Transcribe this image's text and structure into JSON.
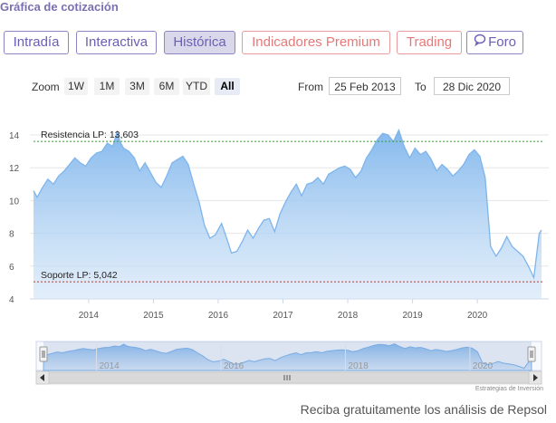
{
  "header": {
    "title": "Gráfica de cotización"
  },
  "tabs": [
    {
      "label": "Intradía"
    },
    {
      "label": "Interactiva"
    },
    {
      "label": "Histórica"
    },
    {
      "label": "Indicadores Premium"
    },
    {
      "label": "Trading"
    },
    {
      "label": "Foro"
    }
  ],
  "zoom": {
    "label": "Zoom",
    "buttons": [
      "1W",
      "1M",
      "3M",
      "6M",
      "YTD",
      "All"
    ],
    "selected": "All"
  },
  "range": {
    "from_label": "From",
    "from_value": "25 Feb 2013",
    "to_label": "To",
    "to_value": "28 Dic 2020"
  },
  "footer": {
    "text": "Reciba gratuitamente los análisis de Repsol",
    "credit": "Estrategias de Inversión"
  },
  "colors": {
    "accent": "#6b5fb5",
    "series": "#7eb5ec",
    "resistance": "#2fa12f",
    "support": "#c0392b"
  },
  "chart_data": {
    "type": "area",
    "title": "",
    "xlabel": "",
    "ylabel": "",
    "ylim": [
      4,
      14
    ],
    "yticks": [
      "4",
      "6",
      "8",
      "10",
      "12",
      "14"
    ],
    "xticks": [
      "2014",
      "2015",
      "2016",
      "2017",
      "2018",
      "2019",
      "2020"
    ],
    "grid": true,
    "x": [
      "2013-02-25",
      "2013-03-15",
      "2013-04-15",
      "2013-05-15",
      "2013-06-15",
      "2013-07-15",
      "2013-08-15",
      "2013-09-15",
      "2013-10-15",
      "2013-11-15",
      "2013-12-15",
      "2014-01-15",
      "2014-02-15",
      "2014-03-15",
      "2014-04-15",
      "2014-05-15",
      "2014-06-10",
      "2014-06-25",
      "2014-07-15",
      "2014-08-15",
      "2014-09-15",
      "2014-10-15",
      "2014-11-15",
      "2014-12-15",
      "2015-01-15",
      "2015-02-15",
      "2015-03-15",
      "2015-04-15",
      "2015-05-15",
      "2015-06-15",
      "2015-07-15",
      "2015-08-15",
      "2015-09-15",
      "2015-10-15",
      "2015-11-15",
      "2015-12-15",
      "2016-01-20",
      "2016-02-15",
      "2016-03-15",
      "2016-04-15",
      "2016-05-15",
      "2016-06-15",
      "2016-07-15",
      "2016-08-15",
      "2016-09-15",
      "2016-10-15",
      "2016-11-15",
      "2016-12-15",
      "2017-01-15",
      "2017-02-15",
      "2017-03-15",
      "2017-04-15",
      "2017-05-15",
      "2017-06-15",
      "2017-07-15",
      "2017-08-15",
      "2017-09-15",
      "2017-10-15",
      "2017-11-15",
      "2017-12-15",
      "2018-01-15",
      "2018-02-15",
      "2018-03-15",
      "2018-04-15",
      "2018-05-15",
      "2018-06-15",
      "2018-07-15",
      "2018-08-15",
      "2018-09-15",
      "2018-10-15",
      "2018-11-15",
      "2018-12-15",
      "2019-01-15",
      "2019-02-15",
      "2019-03-15",
      "2019-04-15",
      "2019-05-15",
      "2019-06-15",
      "2019-07-15",
      "2019-08-15",
      "2019-09-15",
      "2019-10-15",
      "2019-11-15",
      "2019-12-15",
      "2020-01-15",
      "2020-02-15",
      "2020-03-15",
      "2020-04-15",
      "2020-05-15",
      "2020-06-15",
      "2020-07-15",
      "2020-08-15",
      "2020-09-15",
      "2020-10-15",
      "2020-11-15",
      "2020-12-15",
      "2020-12-28"
    ],
    "series": [
      {
        "values": [
          10.6,
          10.2,
          10.8,
          11.3,
          11.0,
          11.5,
          11.8,
          12.2,
          12.6,
          12.3,
          12.1,
          12.6,
          12.9,
          13.0,
          13.5,
          13.3,
          14.2,
          13.6,
          13.2,
          13.0,
          12.6,
          11.8,
          12.3,
          11.7,
          11.1,
          10.8,
          11.5,
          12.3,
          12.5,
          12.7,
          12.2,
          11.0,
          9.9,
          8.5,
          7.7,
          7.9,
          8.6,
          7.8,
          6.8,
          6.9,
          7.5,
          8.2,
          7.7,
          8.3,
          8.8,
          8.9,
          8.1,
          9.2,
          9.9,
          10.5,
          11.0,
          10.3,
          11.0,
          11.1,
          11.4,
          11.0,
          11.6,
          11.8,
          12.0,
          12.1,
          11.9,
          11.4,
          11.8,
          12.6,
          13.1,
          13.7,
          14.1,
          14.0,
          13.6,
          14.3,
          13.3,
          12.6,
          13.2,
          12.8,
          13.0,
          12.5,
          11.8,
          12.2,
          11.9,
          11.5,
          11.8,
          12.2,
          12.8,
          13.1,
          12.7,
          11.4,
          7.2,
          6.6,
          7.1,
          7.8,
          7.2,
          6.9,
          6.6,
          6.0,
          5.3,
          8.0,
          8.2
        ]
      }
    ],
    "annotations": [
      {
        "label": "Resistencia LP: 13,603",
        "value": 13.603
      },
      {
        "label": "Soporte LP: 5,042",
        "value": 5.042
      }
    ],
    "navigator": {
      "xticks": [
        "2014",
        "2016",
        "2018",
        "2020"
      ]
    }
  }
}
